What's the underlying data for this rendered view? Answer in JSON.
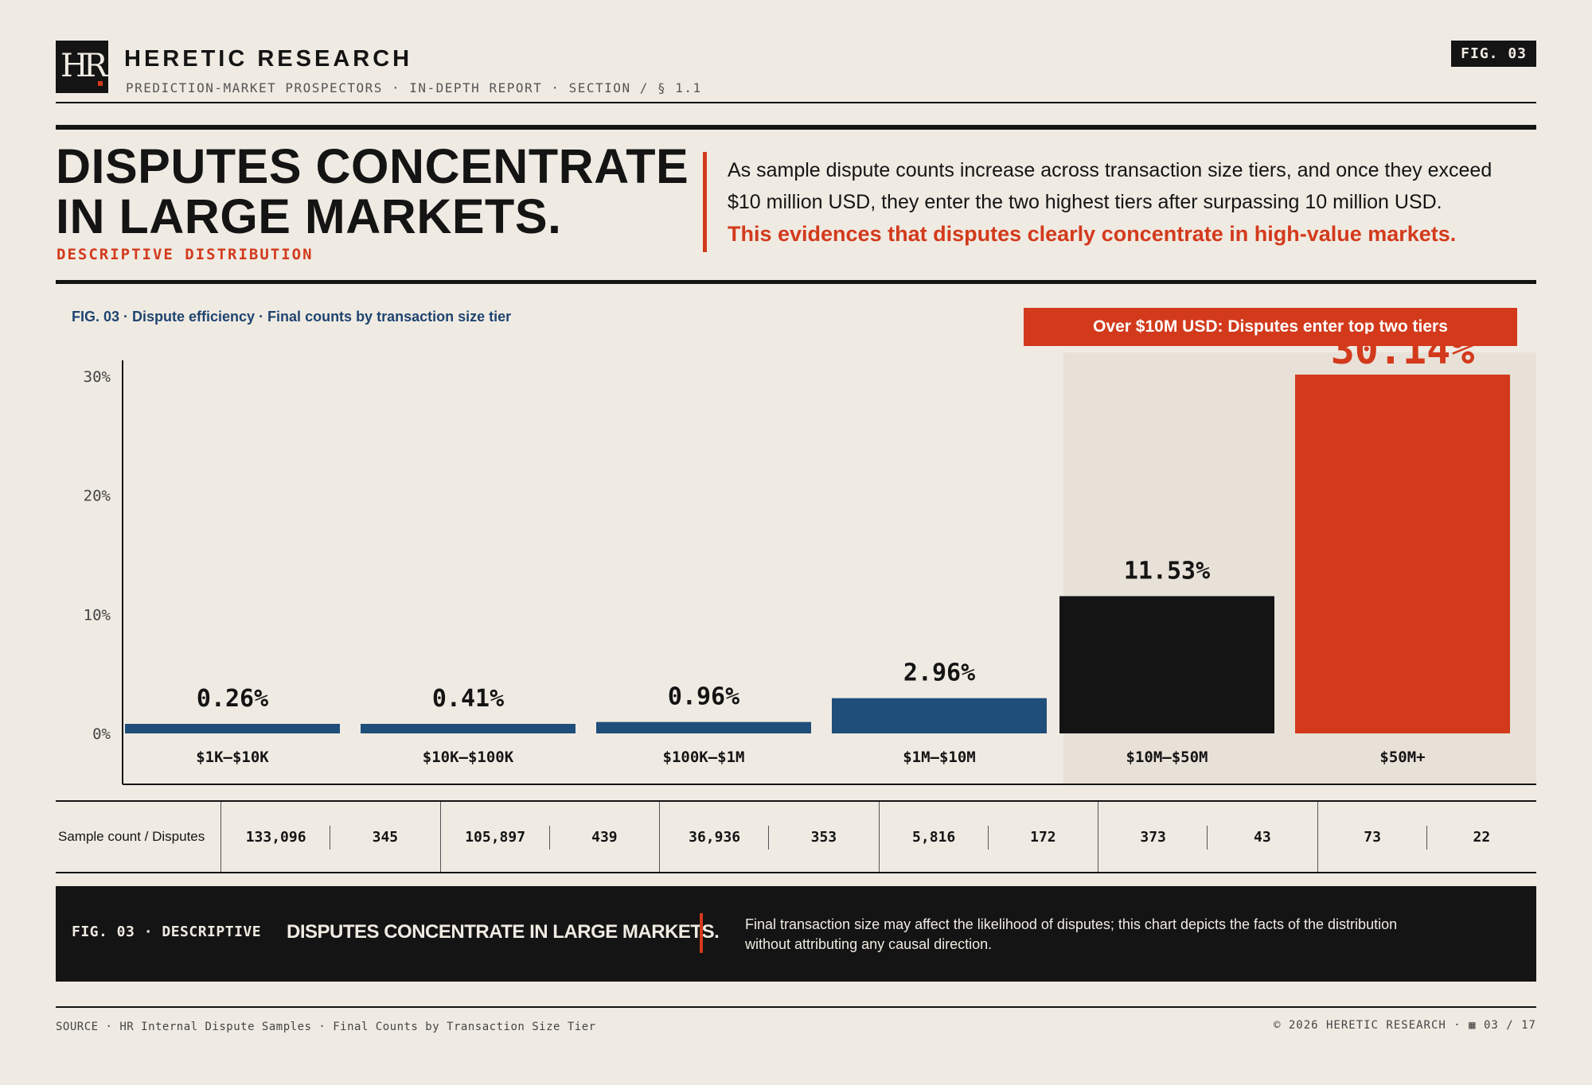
{
  "header": {
    "logo_text": "HR",
    "brand": "HERETIC RESEARCH",
    "subbrand": "PREDICTION-MARKET PROSPECTORS · IN-DEPTH REPORT · SECTION / § 1.1",
    "fig_tag": "FIG. 03"
  },
  "title": {
    "line1": "DISPUTES CONCENTRATE",
    "line2": "IN LARGE MARKETS.",
    "subtitle": "DESCRIPTIVE DISTRIBUTION",
    "description": "As sample dispute counts increase across transaction size tiers, and once they exceed $10 million USD, they enter the two highest tiers after surpassing 10 million USD.",
    "highlight": "This evidences that disputes clearly concentrate in high-value markets."
  },
  "figure": {
    "caption": "FIG. 03 · Dispute efficiency · Final counts by transaction size tier",
    "banner": "Over $10M USD: Disputes enter top two tiers"
  },
  "chart_data": {
    "type": "bar",
    "categories": [
      "$1K–$10K",
      "$10K–$100K",
      "$100K–$1M",
      "$1M–$10M",
      "$10M–$50M",
      "$50M+"
    ],
    "values": [
      0.26,
      0.41,
      0.96,
      2.96,
      11.53,
      30.14
    ],
    "value_labels": [
      "0.26%",
      "0.41%",
      "0.96%",
      "2.96%",
      "11.53%",
      "30.14%"
    ],
    "bar_colors": [
      "#1f4e7a",
      "#1f4e7a",
      "#1f4e7a",
      "#1f4e7a",
      "#141414",
      "#d33a1c"
    ],
    "yticks": [
      0,
      10,
      20,
      30
    ],
    "ytick_labels": [
      "0%",
      "10%",
      "20%",
      "30%"
    ],
    "ylim": [
      0,
      32
    ],
    "highlighted_categories": [
      "$10M–$50M",
      "$50M+"
    ],
    "grid": false
  },
  "table": {
    "row_label": "Sample count / Disputes",
    "groups": [
      {
        "samples": "133,096",
        "disputes": "345"
      },
      {
        "samples": "105,897",
        "disputes": "439"
      },
      {
        "samples": "36,936",
        "disputes": "353"
      },
      {
        "samples": "5,816",
        "disputes": "172"
      },
      {
        "samples": "373",
        "disputes": "43"
      },
      {
        "samples": "73",
        "disputes": "22"
      }
    ]
  },
  "band": {
    "left": "FIG. 03 · DESCRIPTIVE",
    "title": "DISPUTES CONCENTRATE IN LARGE MARKETS.",
    "note": "Final transaction size may affect the likelihood of disputes; this chart depicts the facts of the distribution without attributing any causal direction."
  },
  "footer": {
    "source": "SOURCE · HR Internal Dispute Samples · Final Counts by Transaction Size Tier",
    "copyright": "© 2026 HERETIC RESEARCH · ▦ 03 / 17"
  },
  "colors": {
    "background": "#efebe3",
    "ink": "#141414",
    "accent": "#d33a1c",
    "navy": "#1f4e7a"
  }
}
